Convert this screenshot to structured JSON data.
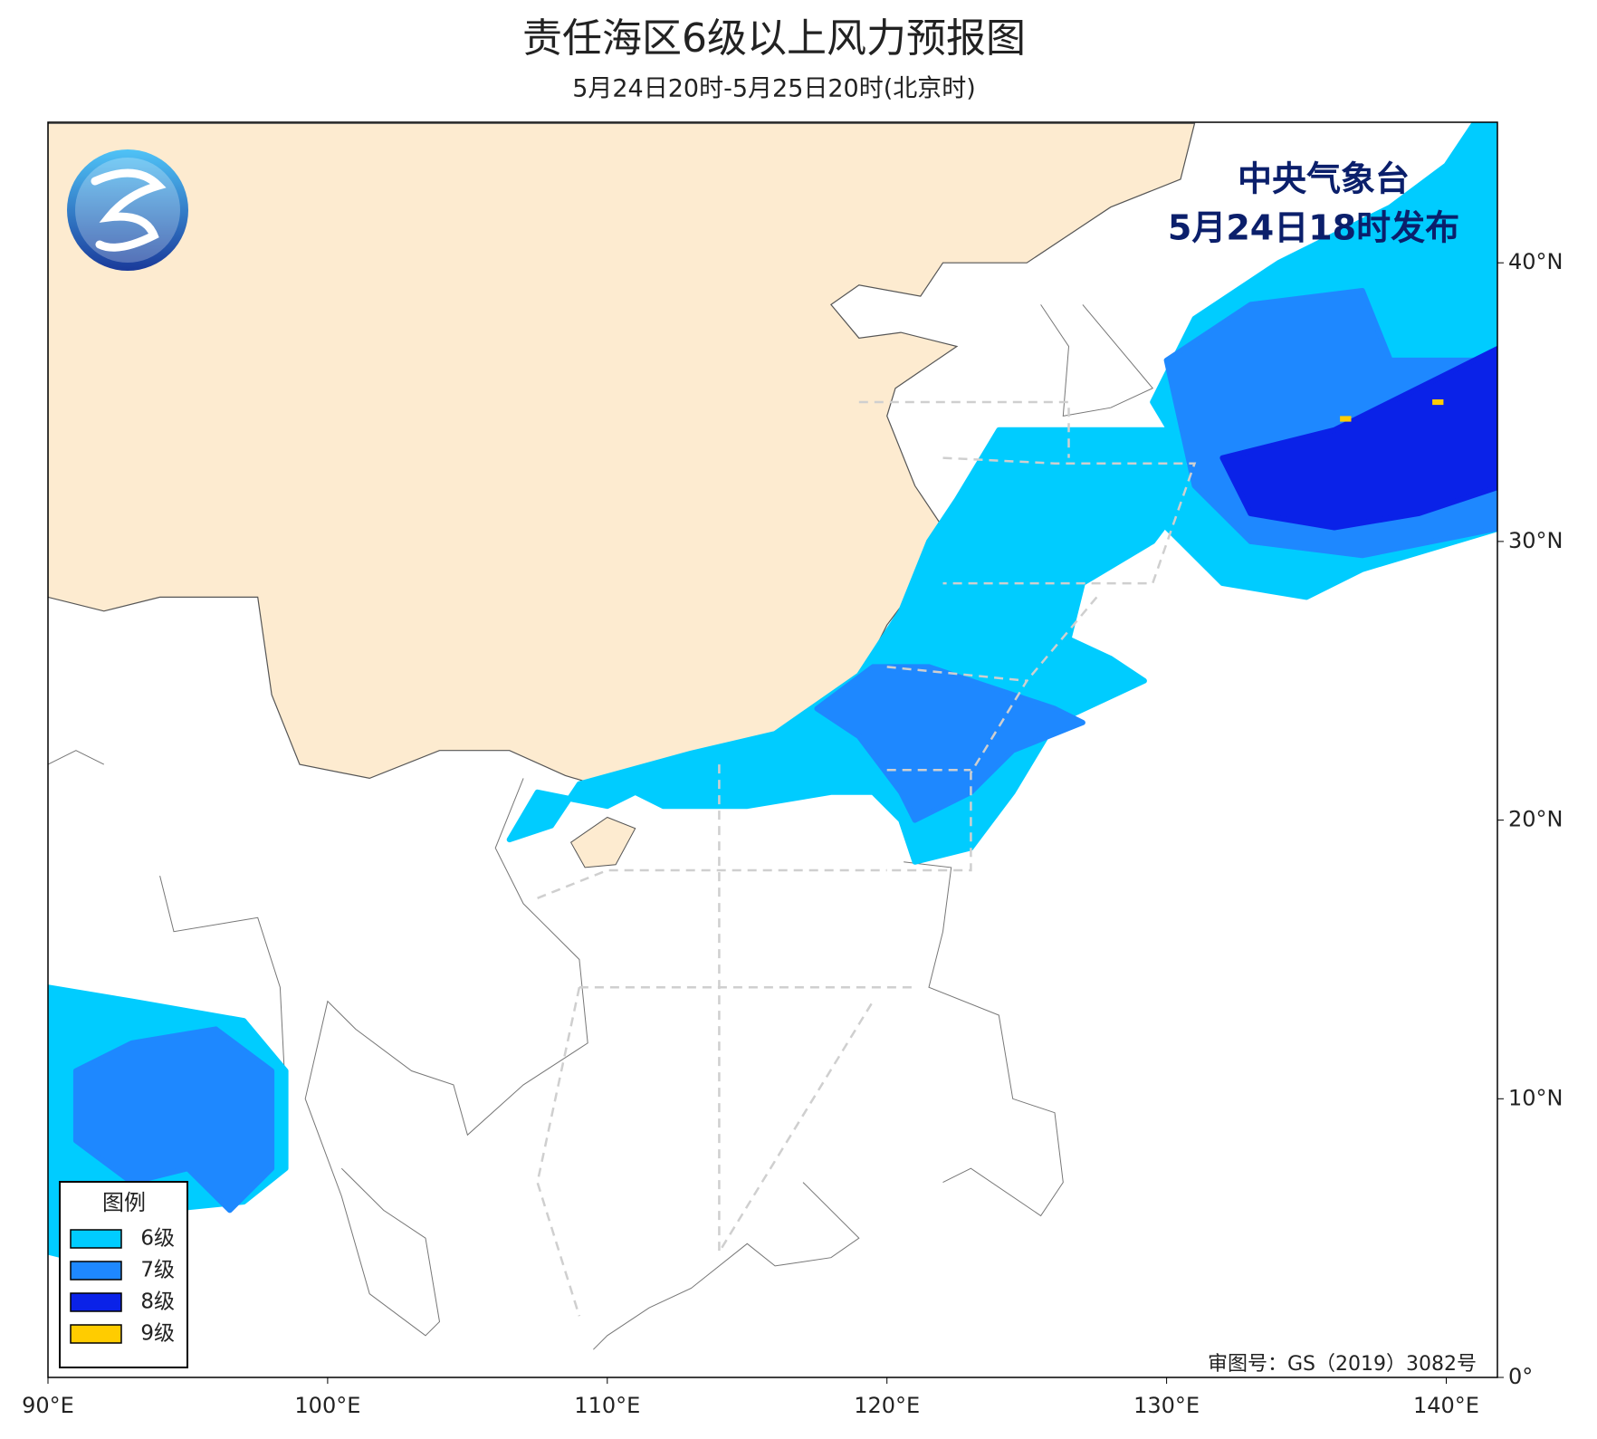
{
  "header": {
    "title": "责任海区6级以上风力预报图",
    "subtitle": "5月24日20时-5月25日20时(北京时)"
  },
  "issuer": {
    "agency": "中央气象台",
    "issued": "5月24日18时发布"
  },
  "legend": {
    "title": "图例",
    "items": [
      {
        "label": "6级",
        "color": "#00ccff"
      },
      {
        "label": "7级",
        "color": "#1e88ff"
      },
      {
        "label": "8级",
        "color": "#0a22e8"
      },
      {
        "label": "9级",
        "color": "#ffcc00"
      }
    ]
  },
  "map": {
    "xticks": [
      {
        "value": 90,
        "label": "90°E"
      },
      {
        "value": 100,
        "label": "100°E"
      },
      {
        "value": 110,
        "label": "110°E"
      },
      {
        "value": 120,
        "label": "120°E"
      },
      {
        "value": 130,
        "label": "130°E"
      },
      {
        "value": 140,
        "label": "140°E"
      }
    ],
    "yticks": [
      {
        "value": 0,
        "label": "0°"
      },
      {
        "value": 10,
        "label": "10°N"
      },
      {
        "value": 20,
        "label": "20°N"
      },
      {
        "value": 30,
        "label": "30°N"
      },
      {
        "value": 40,
        "label": "40°N"
      }
    ]
  },
  "footer": {
    "review_number": "审图号：GS（2019）3082号"
  }
}
